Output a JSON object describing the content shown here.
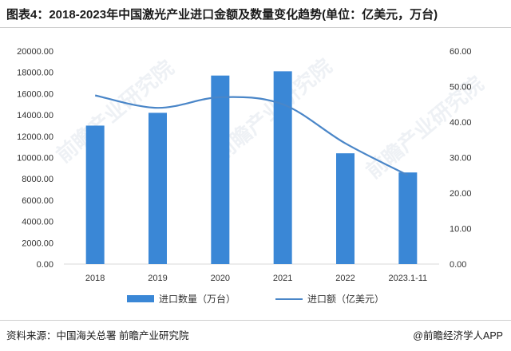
{
  "title": "图表4：2018-2023年中国激光产业进口金额及数量变化趋势(单位：亿美元，万台)",
  "source": "资料来源：中国海关总署 前瞻产业研究院",
  "credit": "@前瞻经济学人APP",
  "watermark": "前瞻产业研究院",
  "chart_data": {
    "type": "bar",
    "categories": [
      "2018",
      "2019",
      "2020",
      "2021",
      "2022",
      "2023.1-11"
    ],
    "series": [
      {
        "name": "进口数量（万台）",
        "type": "bar",
        "axis": "left",
        "color": "#3a87d6",
        "values": [
          13000,
          14200,
          17700,
          18100,
          10400,
          8600
        ]
      },
      {
        "name": "进口额（亿美元）",
        "type": "line",
        "axis": "right",
        "color": "#4a86c8",
        "values": [
          47.5,
          44.0,
          47.0,
          45.0,
          34.0,
          25.0
        ]
      }
    ],
    "ylim_left": [
      0,
      20000
    ],
    "ylim_right": [
      0,
      60
    ],
    "yticks_left": [
      "0.00",
      "2000.00",
      "4000.00",
      "6000.00",
      "8000.00",
      "10000.00",
      "12000.00",
      "14000.00",
      "16000.00",
      "18000.00",
      "20000.00"
    ],
    "yticks_right": [
      "0.00",
      "10.00",
      "20.00",
      "30.00",
      "40.00",
      "50.00",
      "60.00"
    ],
    "grid": false,
    "legend": "bottom"
  }
}
